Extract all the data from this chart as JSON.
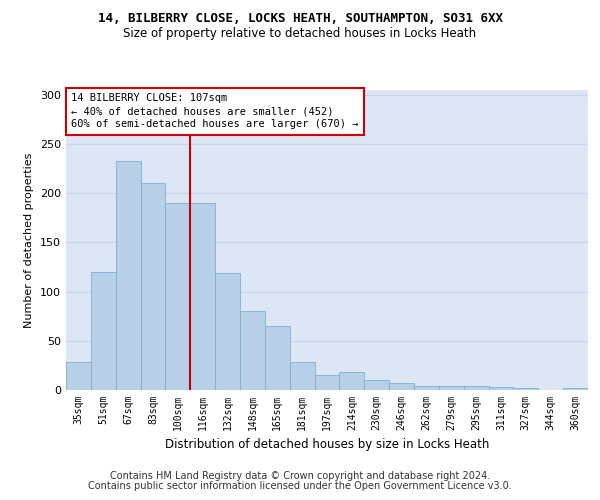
{
  "title_line1": "14, BILBERRY CLOSE, LOCKS HEATH, SOUTHAMPTON, SO31 6XX",
  "title_line2": "Size of property relative to detached houses in Locks Heath",
  "xlabel": "Distribution of detached houses by size in Locks Heath",
  "ylabel": "Number of detached properties",
  "categories": [
    "35sqm",
    "51sqm",
    "67sqm",
    "83sqm",
    "100sqm",
    "116sqm",
    "132sqm",
    "148sqm",
    "165sqm",
    "181sqm",
    "197sqm",
    "214sqm",
    "230sqm",
    "246sqm",
    "262sqm",
    "279sqm",
    "295sqm",
    "311sqm",
    "327sqm",
    "344sqm",
    "360sqm"
  ],
  "values": [
    28,
    120,
    233,
    210,
    190,
    190,
    119,
    80,
    65,
    28,
    15,
    18,
    10,
    7,
    4,
    4,
    4,
    3,
    2,
    0,
    2
  ],
  "bar_color": "#b8cfe8",
  "bar_edge_color": "#7bafd4",
  "bar_edge_width": 0.6,
  "vline_color": "#cc0000",
  "annotation_text": "14 BILBERRY CLOSE: 107sqm\n← 40% of detached houses are smaller (452)\n60% of semi-detached houses are larger (670) →",
  "annotation_box_color": "#ffffff",
  "annotation_box_edge": "#cc0000",
  "annotation_fontsize": 7.5,
  "ylim": [
    0,
    305
  ],
  "yticks": [
    0,
    50,
    100,
    150,
    200,
    250,
    300
  ],
  "grid_color": "#c8d4e8",
  "background_color": "#dce6f5",
  "footer_line1": "Contains HM Land Registry data © Crown copyright and database right 2024.",
  "footer_line2": "Contains public sector information licensed under the Open Government Licence v3.0.",
  "title_fontsize": 9,
  "subtitle_fontsize": 8.5,
  "footer_fontsize": 7,
  "ylabel_fontsize": 8,
  "xlabel_fontsize": 8.5
}
